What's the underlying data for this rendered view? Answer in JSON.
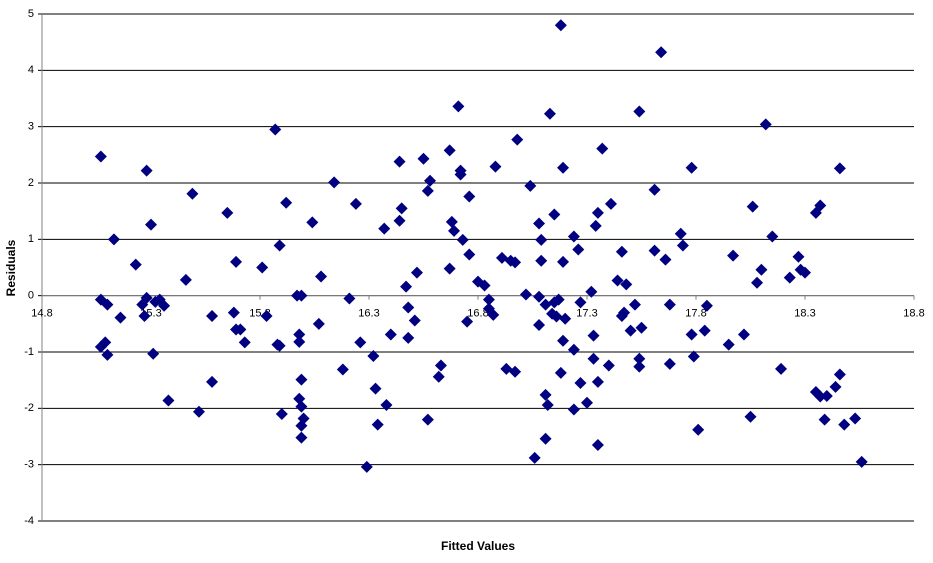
{
  "chart_data": {
    "type": "scatter",
    "xlabel": "Fitted Values",
    "ylabel": "Residuals",
    "xlim": [
      14.8,
      18.8
    ],
    "xticks": [
      14.8,
      15.3,
      15.8,
      16.3,
      16.8,
      17.3,
      17.8,
      18.3,
      18.8
    ],
    "ylim": [
      -4,
      5
    ],
    "yticks": [
      -4,
      -3,
      -2,
      -1,
      0,
      1,
      2,
      3,
      4,
      5
    ],
    "grid": true,
    "color": "#000080",
    "series": [
      {
        "color": "#000080",
        "x": [
          15.07,
          15.07,
          15.07,
          15.09,
          15.1,
          15.1,
          15.13,
          15.16,
          15.23,
          15.26,
          15.27,
          15.28,
          15.28,
          15.3,
          15.31,
          15.32,
          15.34,
          15.36,
          15.38,
          15.46,
          15.49,
          15.52,
          15.58,
          15.58,
          15.65,
          15.68,
          15.69,
          15.69,
          15.71,
          15.73,
          15.81,
          15.83,
          15.87,
          15.88,
          15.89,
          15.89,
          15.9,
          15.92,
          15.97,
          15.98,
          15.98,
          15.98,
          15.99,
          15.99,
          15.99,
          15.99,
          15.99,
          16.0,
          16.04,
          16.07,
          16.08,
          16.14,
          16.18,
          16.21,
          16.24,
          16.26,
          16.29,
          16.32,
          16.33,
          16.34,
          16.37,
          16.38,
          16.4,
          16.44,
          16.44,
          16.45,
          16.47,
          16.48,
          16.48,
          16.51,
          16.52,
          16.55,
          16.57,
          16.57,
          16.58,
          16.62,
          16.63,
          16.67,
          16.67,
          16.68,
          16.69,
          16.71,
          16.72,
          16.72,
          16.73,
          16.75,
          16.76,
          16.76,
          16.8,
          16.83,
          16.85,
          16.85,
          16.87,
          16.88,
          16.91,
          16.93,
          16.95,
          16.97,
          16.97,
          16.98,
          17.02,
          17.04,
          17.06,
          17.08,
          17.08,
          17.08,
          17.09,
          17.09,
          17.11,
          17.11,
          17.11,
          17.12,
          17.13,
          17.14,
          17.15,
          17.15,
          17.16,
          17.17,
          17.18,
          17.18,
          17.19,
          17.19,
          17.19,
          17.2,
          17.24,
          17.24,
          17.24,
          17.26,
          17.27,
          17.27,
          17.3,
          17.32,
          17.33,
          17.33,
          17.34,
          17.35,
          17.35,
          17.35,
          17.37,
          17.4,
          17.41,
          17.44,
          17.46,
          17.46,
          17.47,
          17.48,
          17.5,
          17.52,
          17.54,
          17.54,
          17.54,
          17.55,
          17.61,
          17.61,
          17.64,
          17.66,
          17.68,
          17.68,
          17.73,
          17.74,
          17.78,
          17.78,
          17.79,
          17.81,
          17.84,
          17.85,
          17.95,
          17.97,
          18.02,
          18.05,
          18.06,
          18.08,
          18.1,
          18.12,
          18.15,
          18.19,
          18.23,
          18.27,
          18.28,
          18.3,
          18.35,
          18.35,
          18.37,
          18.37,
          18.39,
          18.4,
          18.44,
          18.46,
          18.46,
          18.48,
          18.53,
          18.56
        ],
        "values": [
          2.47,
          -0.07,
          -0.91,
          -0.83,
          -1.05,
          -0.16,
          1.0,
          -0.39,
          0.55,
          -0.16,
          -0.36,
          2.22,
          -0.04,
          1.26,
          -1.03,
          -0.11,
          -0.07,
          -0.18,
          -1.86,
          0.28,
          1.81,
          -2.06,
          -0.36,
          -1.53,
          1.47,
          -0.3,
          0.6,
          -0.6,
          -0.6,
          -0.83,
          0.5,
          -0.36,
          2.95,
          -0.87,
          0.89,
          -0.89,
          -2.1,
          1.65,
          0.0,
          -1.83,
          -0.69,
          -0.82,
          -2.52,
          0.0,
          -1.97,
          -2.31,
          -1.49,
          -2.18,
          1.3,
          -0.5,
          0.34,
          2.01,
          -1.31,
          -0.05,
          1.63,
          -0.83,
          -3.04,
          -1.07,
          -1.65,
          -2.29,
          1.19,
          -1.94,
          -0.69,
          2.38,
          1.33,
          1.55,
          0.16,
          -0.21,
          -0.75,
          -0.44,
          0.41,
          2.43,
          -2.2,
          1.86,
          2.04,
          -1.44,
          -1.24,
          0.48,
          2.58,
          1.31,
          1.15,
          3.36,
          2.22,
          2.15,
          0.99,
          -0.46,
          1.76,
          0.73,
          0.25,
          0.18,
          -0.23,
          -0.07,
          -0.34,
          2.29,
          0.67,
          -1.3,
          0.62,
          0.59,
          -1.35,
          2.77,
          0.02,
          1.95,
          -2.88,
          -0.02,
          1.28,
          -0.52,
          0.99,
          0.62,
          -2.54,
          -1.76,
          -0.16,
          -1.94,
          3.23,
          -0.32,
          -0.12,
          1.44,
          -0.37,
          -0.07,
          4.8,
          -1.37,
          2.27,
          0.6,
          -0.8,
          -0.41,
          1.05,
          -0.96,
          -2.02,
          0.82,
          -0.12,
          -1.55,
          -1.9,
          0.07,
          -0.71,
          -1.12,
          1.24,
          -1.53,
          -2.65,
          1.47,
          2.61,
          -1.24,
          1.63,
          0.27,
          -0.36,
          0.78,
          -0.3,
          0.2,
          -0.62,
          -0.16,
          3.27,
          -1.12,
          -1.26,
          -0.57,
          1.88,
          0.8,
          4.32,
          0.64,
          -1.21,
          -0.16,
          1.1,
          0.89,
          -0.69,
          2.27,
          -1.08,
          -2.38,
          -0.62,
          -0.18,
          -0.87,
          0.71,
          -0.69,
          -2.15,
          1.58,
          0.23,
          0.46,
          3.04,
          1.05,
          -1.3,
          0.32,
          0.69,
          0.46,
          0.41,
          -1.71,
          1.47,
          1.6,
          -1.79,
          -2.2,
          -1.78,
          -1.62,
          2.26,
          -1.4,
          -2.29,
          -2.18,
          -2.95
        ]
      }
    ]
  }
}
